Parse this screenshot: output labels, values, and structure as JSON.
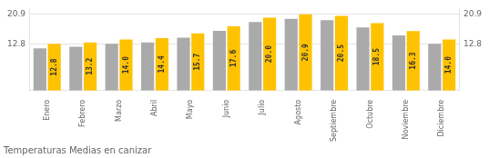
{
  "chart_data": {
    "type": "bar",
    "title": "Temperaturas Medias en canizar",
    "categories": [
      "Enero",
      "Febrero",
      "Marzo",
      "Abril",
      "Mayo",
      "Junio",
      "Julio",
      "Agosto",
      "Septiembre",
      "Octubre",
      "Noviembre",
      "Diciembre"
    ],
    "series": [
      {
        "color": "#AAAAAA",
        "values": [
          11.6,
          12.0,
          12.8,
          13.2,
          14.5,
          16.4,
          18.8,
          19.7,
          19.3,
          17.3,
          15.1,
          12.8
        ]
      },
      {
        "color": "#FFC200",
        "values": [
          12.8,
          13.2,
          14.0,
          14.4,
          15.7,
          17.6,
          20.0,
          20.9,
          20.5,
          18.5,
          16.3,
          14.0
        ],
        "value_labels": [
          "12.8",
          "13.2",
          "14.0",
          "14.4",
          "15.7",
          "17.6",
          "20.0",
          "20.9",
          "20.5",
          "18.5",
          "16.3",
          "14.0"
        ],
        "data_labels": true
      }
    ],
    "ylim": [
      0.0,
      22.5
    ],
    "yticks": [
      12.8,
      20.9
    ],
    "y2lim": [
      0.0,
      22.5
    ],
    "y2ticks": [
      12.8,
      20.9
    ],
    "grid": true
  }
}
